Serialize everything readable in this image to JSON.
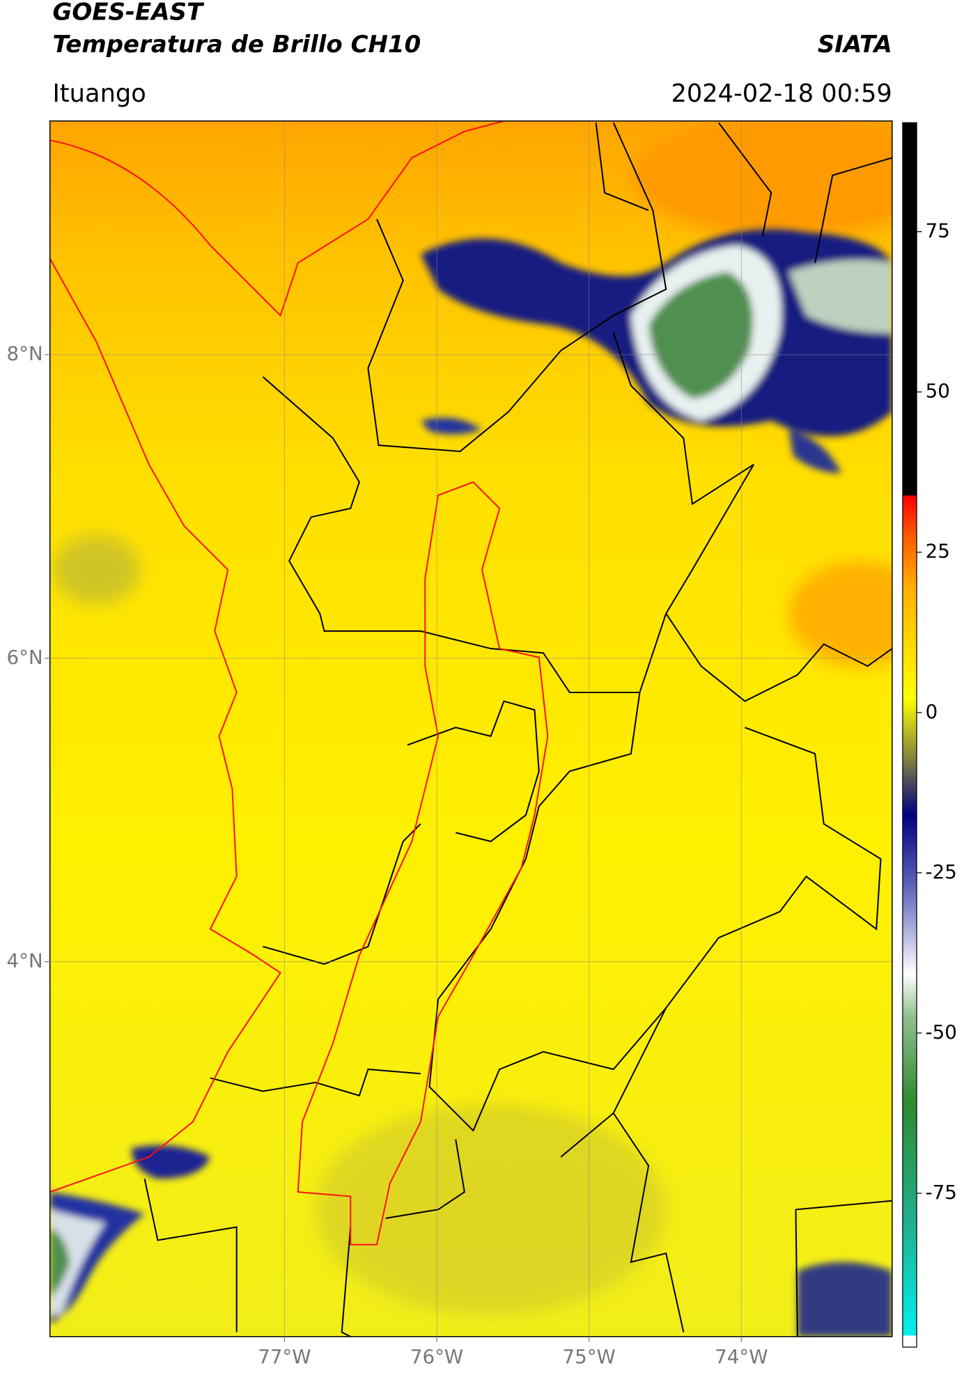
{
  "header": {
    "title": "GOES-EAST",
    "subtitle": "Temperatura de Brillo CH10",
    "source": "SIATA",
    "location": "Ituango",
    "datetime": "2024-02-18 00:59"
  },
  "map": {
    "lon_lim": [
      -78.54,
      -73.01
    ],
    "lat_lim": [
      1.53,
      9.54
    ],
    "lon_ticks": [
      {
        "value": -77,
        "label": "77°W"
      },
      {
        "value": -76,
        "label": "76°W"
      },
      {
        "value": -75,
        "label": "75°W"
      },
      {
        "value": -74,
        "label": "74°W"
      }
    ],
    "lat_ticks": [
      {
        "value": 8,
        "label": "8°N"
      },
      {
        "value": 6,
        "label": "6°N"
      },
      {
        "value": 4,
        "label": "4°N"
      }
    ]
  },
  "colorbar": {
    "lim": [
      -99,
      92
    ],
    "ticks": [
      75,
      50,
      25,
      0,
      -25,
      -50,
      -75
    ]
  }
}
